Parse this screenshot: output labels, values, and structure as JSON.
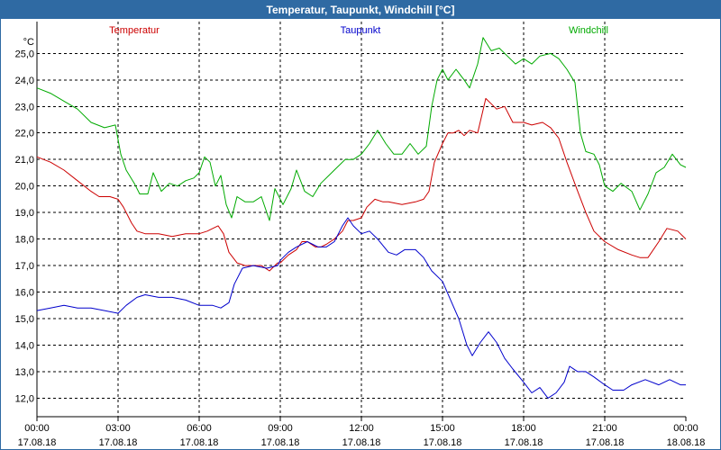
{
  "window": {
    "title": "Temperatur, Taupunkt, Windchill [°C]"
  },
  "colors": {
    "title_bar": "#2f6aa3",
    "temperatur": "#cc0000",
    "taupunkt": "#0000cc",
    "windchill": "#00aa00"
  },
  "chart_data": {
    "type": "line",
    "title": "Temperatur, Taupunkt, Windchill [°C]",
    "ylabel": "°C",
    "xlabel": "",
    "ylim": [
      11.3,
      26.2
    ],
    "yticks": [
      "25,0",
      "24,0",
      "23,0",
      "22,0",
      "21,0",
      "20,0",
      "19,0",
      "18,0",
      "17,0",
      "16,0",
      "15,0",
      "14,0",
      "13,0",
      "12,0"
    ],
    "ytick_values": [
      25,
      24,
      23,
      22,
      21,
      20,
      19,
      18,
      17,
      16,
      15,
      14,
      13,
      12
    ],
    "xlim": [
      0,
      24
    ],
    "xticks": [
      {
        "time": "00:00",
        "date": "17.08.18",
        "h": 0
      },
      {
        "time": "03:00",
        "date": "17.08.18",
        "h": 3
      },
      {
        "time": "06:00",
        "date": "17.08.18",
        "h": 6
      },
      {
        "time": "09:00",
        "date": "17.08.18",
        "h": 9
      },
      {
        "time": "12:00",
        "date": "17.08.18",
        "h": 12
      },
      {
        "time": "15:00",
        "date": "17.08.18",
        "h": 15
      },
      {
        "time": "18:00",
        "date": "17.08.18",
        "h": 18
      },
      {
        "time": "21:00",
        "date": "17.08.18",
        "h": 21
      },
      {
        "time": "00:00",
        "date": "18.08.18",
        "h": 24
      }
    ],
    "grid": true,
    "legend_placement": "top",
    "series": [
      {
        "name": "Temperatur",
        "color": "#cc0000",
        "legend_position": "left",
        "points": [
          [
            0,
            21.1
          ],
          [
            0.5,
            20.9
          ],
          [
            1,
            20.6
          ],
          [
            1.5,
            20.2
          ],
          [
            2,
            19.8
          ],
          [
            2.3,
            19.6
          ],
          [
            2.7,
            19.6
          ],
          [
            3,
            19.5
          ],
          [
            3.2,
            19.2
          ],
          [
            3.5,
            18.6
          ],
          [
            3.7,
            18.3
          ],
          [
            4,
            18.2
          ],
          [
            4.5,
            18.2
          ],
          [
            5,
            18.1
          ],
          [
            5.5,
            18.2
          ],
          [
            6,
            18.2
          ],
          [
            6.3,
            18.3
          ],
          [
            6.7,
            18.5
          ],
          [
            6.9,
            18.2
          ],
          [
            7.1,
            17.5
          ],
          [
            7.4,
            17.1
          ],
          [
            7.7,
            17.0
          ],
          [
            8,
            17.0
          ],
          [
            8.3,
            17.0
          ],
          [
            8.6,
            16.8
          ],
          [
            8.9,
            17.1
          ],
          [
            9,
            17.1
          ],
          [
            9.3,
            17.4
          ],
          [
            9.6,
            17.6
          ],
          [
            9.8,
            17.9
          ],
          [
            10,
            17.9
          ],
          [
            10.3,
            17.7
          ],
          [
            10.5,
            17.7
          ],
          [
            10.7,
            17.8
          ],
          [
            11,
            18.0
          ],
          [
            11.3,
            18.3
          ],
          [
            11.5,
            18.7
          ],
          [
            11.7,
            18.7
          ],
          [
            12,
            18.8
          ],
          [
            12.2,
            19.2
          ],
          [
            12.5,
            19.5
          ],
          [
            12.8,
            19.4
          ],
          [
            13,
            19.4
          ],
          [
            13.5,
            19.3
          ],
          [
            14,
            19.4
          ],
          [
            14.3,
            19.5
          ],
          [
            14.5,
            19.8
          ],
          [
            14.7,
            20.9
          ],
          [
            15,
            21.6
          ],
          [
            15.2,
            22.0
          ],
          [
            15.4,
            22.0
          ],
          [
            15.6,
            22.1
          ],
          [
            15.8,
            21.9
          ],
          [
            16,
            22.1
          ],
          [
            16.3,
            22.0
          ],
          [
            16.6,
            23.3
          ],
          [
            16.8,
            23.1
          ],
          [
            17,
            22.9
          ],
          [
            17.3,
            23.0
          ],
          [
            17.6,
            22.4
          ],
          [
            18,
            22.4
          ],
          [
            18.3,
            22.3
          ],
          [
            18.7,
            22.4
          ],
          [
            19,
            22.2
          ],
          [
            19.3,
            21.8
          ],
          [
            19.6,
            20.9
          ],
          [
            20,
            19.8
          ],
          [
            20.3,
            19.0
          ],
          [
            20.6,
            18.3
          ],
          [
            21,
            17.9
          ],
          [
            21.5,
            17.6
          ],
          [
            22,
            17.4
          ],
          [
            22.3,
            17.3
          ],
          [
            22.6,
            17.3
          ],
          [
            23,
            17.9
          ],
          [
            23.3,
            18.4
          ],
          [
            23.7,
            18.3
          ],
          [
            24,
            18.0
          ]
        ]
      },
      {
        "name": "Taupunkt",
        "color": "#0000cc",
        "legend_position": "center",
        "points": [
          [
            0,
            15.3
          ],
          [
            0.5,
            15.4
          ],
          [
            1,
            15.5
          ],
          [
            1.5,
            15.4
          ],
          [
            2,
            15.4
          ],
          [
            2.5,
            15.3
          ],
          [
            3,
            15.2
          ],
          [
            3.3,
            15.5
          ],
          [
            3.7,
            15.8
          ],
          [
            4,
            15.9
          ],
          [
            4.5,
            15.8
          ],
          [
            5,
            15.8
          ],
          [
            5.5,
            15.7
          ],
          [
            6,
            15.5
          ],
          [
            6.5,
            15.5
          ],
          [
            6.8,
            15.4
          ],
          [
            7.1,
            15.6
          ],
          [
            7.3,
            16.3
          ],
          [
            7.6,
            16.9
          ],
          [
            8,
            17.0
          ],
          [
            8.5,
            16.9
          ],
          [
            8.9,
            17.0
          ],
          [
            9,
            17.2
          ],
          [
            9.3,
            17.5
          ],
          [
            9.6,
            17.7
          ],
          [
            10,
            17.9
          ],
          [
            10.4,
            17.7
          ],
          [
            10.7,
            17.7
          ],
          [
            11,
            17.9
          ],
          [
            11.3,
            18.5
          ],
          [
            11.5,
            18.8
          ],
          [
            11.7,
            18.5
          ],
          [
            12,
            18.2
          ],
          [
            12.3,
            18.3
          ],
          [
            12.6,
            18.0
          ],
          [
            13,
            17.5
          ],
          [
            13.3,
            17.4
          ],
          [
            13.6,
            17.6
          ],
          [
            14,
            17.6
          ],
          [
            14.3,
            17.3
          ],
          [
            14.6,
            16.8
          ],
          [
            15,
            16.4
          ],
          [
            15.3,
            15.7
          ],
          [
            15.6,
            15.0
          ],
          [
            15.9,
            14.0
          ],
          [
            16.1,
            13.6
          ],
          [
            16.4,
            14.1
          ],
          [
            16.7,
            14.5
          ],
          [
            17,
            14.1
          ],
          [
            17.3,
            13.5
          ],
          [
            17.6,
            13.1
          ],
          [
            18,
            12.6
          ],
          [
            18.3,
            12.2
          ],
          [
            18.6,
            12.4
          ],
          [
            18.9,
            12.0
          ],
          [
            19.2,
            12.2
          ],
          [
            19.5,
            12.6
          ],
          [
            19.7,
            13.2
          ],
          [
            20,
            13.0
          ],
          [
            20.3,
            13.0
          ],
          [
            20.6,
            12.8
          ],
          [
            21,
            12.5
          ],
          [
            21.3,
            12.3
          ],
          [
            21.7,
            12.3
          ],
          [
            22,
            12.5
          ],
          [
            22.5,
            12.7
          ],
          [
            23,
            12.5
          ],
          [
            23.4,
            12.7
          ],
          [
            23.8,
            12.5
          ],
          [
            24,
            12.5
          ]
        ]
      },
      {
        "name": "Windchill",
        "color": "#00aa00",
        "legend_position": "right",
        "points": [
          [
            0,
            23.7
          ],
          [
            0.5,
            23.5
          ],
          [
            1,
            23.2
          ],
          [
            1.5,
            22.9
          ],
          [
            2,
            22.4
          ],
          [
            2.5,
            22.2
          ],
          [
            2.9,
            22.3
          ],
          [
            3.1,
            21.2
          ],
          [
            3.3,
            20.6
          ],
          [
            3.6,
            20.1
          ],
          [
            3.8,
            19.7
          ],
          [
            4.1,
            19.7
          ],
          [
            4.3,
            20.5
          ],
          [
            4.6,
            19.8
          ],
          [
            4.9,
            20.1
          ],
          [
            5.2,
            20.0
          ],
          [
            5.5,
            20.2
          ],
          [
            5.8,
            20.3
          ],
          [
            6,
            20.5
          ],
          [
            6.2,
            21.1
          ],
          [
            6.4,
            20.9
          ],
          [
            6.6,
            20.0
          ],
          [
            6.8,
            20.4
          ],
          [
            7.0,
            19.3
          ],
          [
            7.2,
            18.8
          ],
          [
            7.4,
            19.6
          ],
          [
            7.7,
            19.4
          ],
          [
            8,
            19.4
          ],
          [
            8.3,
            19.6
          ],
          [
            8.6,
            18.7
          ],
          [
            8.8,
            19.9
          ],
          [
            9.1,
            19.3
          ],
          [
            9.4,
            19.9
          ],
          [
            9.6,
            20.6
          ],
          [
            9.9,
            19.8
          ],
          [
            10.2,
            19.6
          ],
          [
            10.5,
            20.1
          ],
          [
            10.8,
            20.4
          ],
          [
            11.1,
            20.7
          ],
          [
            11.4,
            21.0
          ],
          [
            11.7,
            21.0
          ],
          [
            12,
            21.2
          ],
          [
            12.3,
            21.6
          ],
          [
            12.6,
            22.1
          ],
          [
            12.9,
            21.6
          ],
          [
            13.2,
            21.2
          ],
          [
            13.5,
            21.2
          ],
          [
            13.8,
            21.6
          ],
          [
            14.1,
            21.2
          ],
          [
            14.4,
            21.5
          ],
          [
            14.6,
            23.0
          ],
          [
            14.8,
            24.0
          ],
          [
            15,
            24.4
          ],
          [
            15.2,
            24.0
          ],
          [
            15.5,
            24.4
          ],
          [
            15.8,
            24.0
          ],
          [
            16,
            23.7
          ],
          [
            16.3,
            24.6
          ],
          [
            16.5,
            25.6
          ],
          [
            16.8,
            25.1
          ],
          [
            17.1,
            25.2
          ],
          [
            17.4,
            24.9
          ],
          [
            17.7,
            24.6
          ],
          [
            18,
            24.8
          ],
          [
            18.3,
            24.6
          ],
          [
            18.6,
            24.9
          ],
          [
            19,
            25.0
          ],
          [
            19.3,
            24.8
          ],
          [
            19.6,
            24.4
          ],
          [
            19.9,
            23.9
          ],
          [
            20.1,
            22.0
          ],
          [
            20.3,
            21.3
          ],
          [
            20.6,
            21.2
          ],
          [
            20.8,
            20.8
          ],
          [
            21,
            20.0
          ],
          [
            21.3,
            19.8
          ],
          [
            21.6,
            20.1
          ],
          [
            22,
            19.8
          ],
          [
            22.3,
            19.1
          ],
          [
            22.6,
            19.7
          ],
          [
            22.9,
            20.5
          ],
          [
            23.2,
            20.7
          ],
          [
            23.5,
            21.2
          ],
          [
            23.8,
            20.8
          ],
          [
            24,
            20.7
          ]
        ]
      }
    ]
  }
}
